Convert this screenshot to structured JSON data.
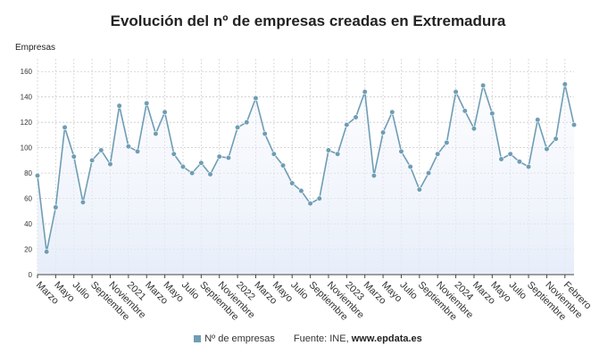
{
  "chart_data": {
    "type": "line",
    "title": "Evolución del nº de empresas creadas en Extremadura",
    "ylabel": "Empresas",
    "xlabel": "",
    "ylim": [
      0,
      170
    ],
    "yticks": [
      0,
      20,
      40,
      60,
      80,
      100,
      120,
      140,
      160
    ],
    "grid": true,
    "legend_position": "bottom",
    "x_tick_labels": [
      {
        "i": 0,
        "label": "Marzo"
      },
      {
        "i": 2,
        "label": "Mayo"
      },
      {
        "i": 4,
        "label": "Julio"
      },
      {
        "i": 6,
        "label": "Septiembre"
      },
      {
        "i": 8,
        "label": "Noviembre"
      },
      {
        "i": 10,
        "label": "2021"
      },
      {
        "i": 12,
        "label": "Marzo"
      },
      {
        "i": 14,
        "label": "Mayo"
      },
      {
        "i": 16,
        "label": "Julio"
      },
      {
        "i": 18,
        "label": "Septiembre"
      },
      {
        "i": 20,
        "label": "Noviembre"
      },
      {
        "i": 22,
        "label": "2022"
      },
      {
        "i": 24,
        "label": "Marzo"
      },
      {
        "i": 26,
        "label": "Mayo"
      },
      {
        "i": 28,
        "label": "Julio"
      },
      {
        "i": 30,
        "label": "Septiembre"
      },
      {
        "i": 32,
        "label": "Noviembre"
      },
      {
        "i": 34,
        "label": "2023"
      },
      {
        "i": 36,
        "label": "Marzo"
      },
      {
        "i": 38,
        "label": "Mayo"
      },
      {
        "i": 40,
        "label": "Julio"
      },
      {
        "i": 42,
        "label": "Septiembre"
      },
      {
        "i": 44,
        "label": "Noviembre"
      },
      {
        "i": 46,
        "label": "2024"
      },
      {
        "i": 48,
        "label": "Marzo"
      },
      {
        "i": 50,
        "label": "Mayo"
      },
      {
        "i": 52,
        "label": "Julio"
      },
      {
        "i": 54,
        "label": "Septiembre"
      },
      {
        "i": 56,
        "label": "Noviembre"
      },
      {
        "i": 58,
        "label": "Febrero"
      }
    ],
    "series": [
      {
        "name": "Nº de empresas",
        "color": "#6f9db5",
        "values": [
          78,
          18,
          53,
          116,
          93,
          57,
          90,
          98,
          87,
          133,
          101,
          97,
          135,
          111,
          128,
          95,
          85,
          80,
          88,
          79,
          93,
          92,
          116,
          120,
          139,
          111,
          95,
          86,
          72,
          66,
          56,
          60,
          98,
          95,
          118,
          124,
          144,
          78,
          112,
          128,
          97,
          85,
          67,
          80,
          95,
          104,
          144,
          129,
          115,
          149,
          127,
          91,
          95,
          89,
          85,
          122,
          99,
          107,
          150,
          118
        ]
      }
    ]
  },
  "legend": {
    "series_label": "Nº de empresas",
    "source_prefix": "Fuente: INE, ",
    "source_site": "www.epdata.es"
  }
}
